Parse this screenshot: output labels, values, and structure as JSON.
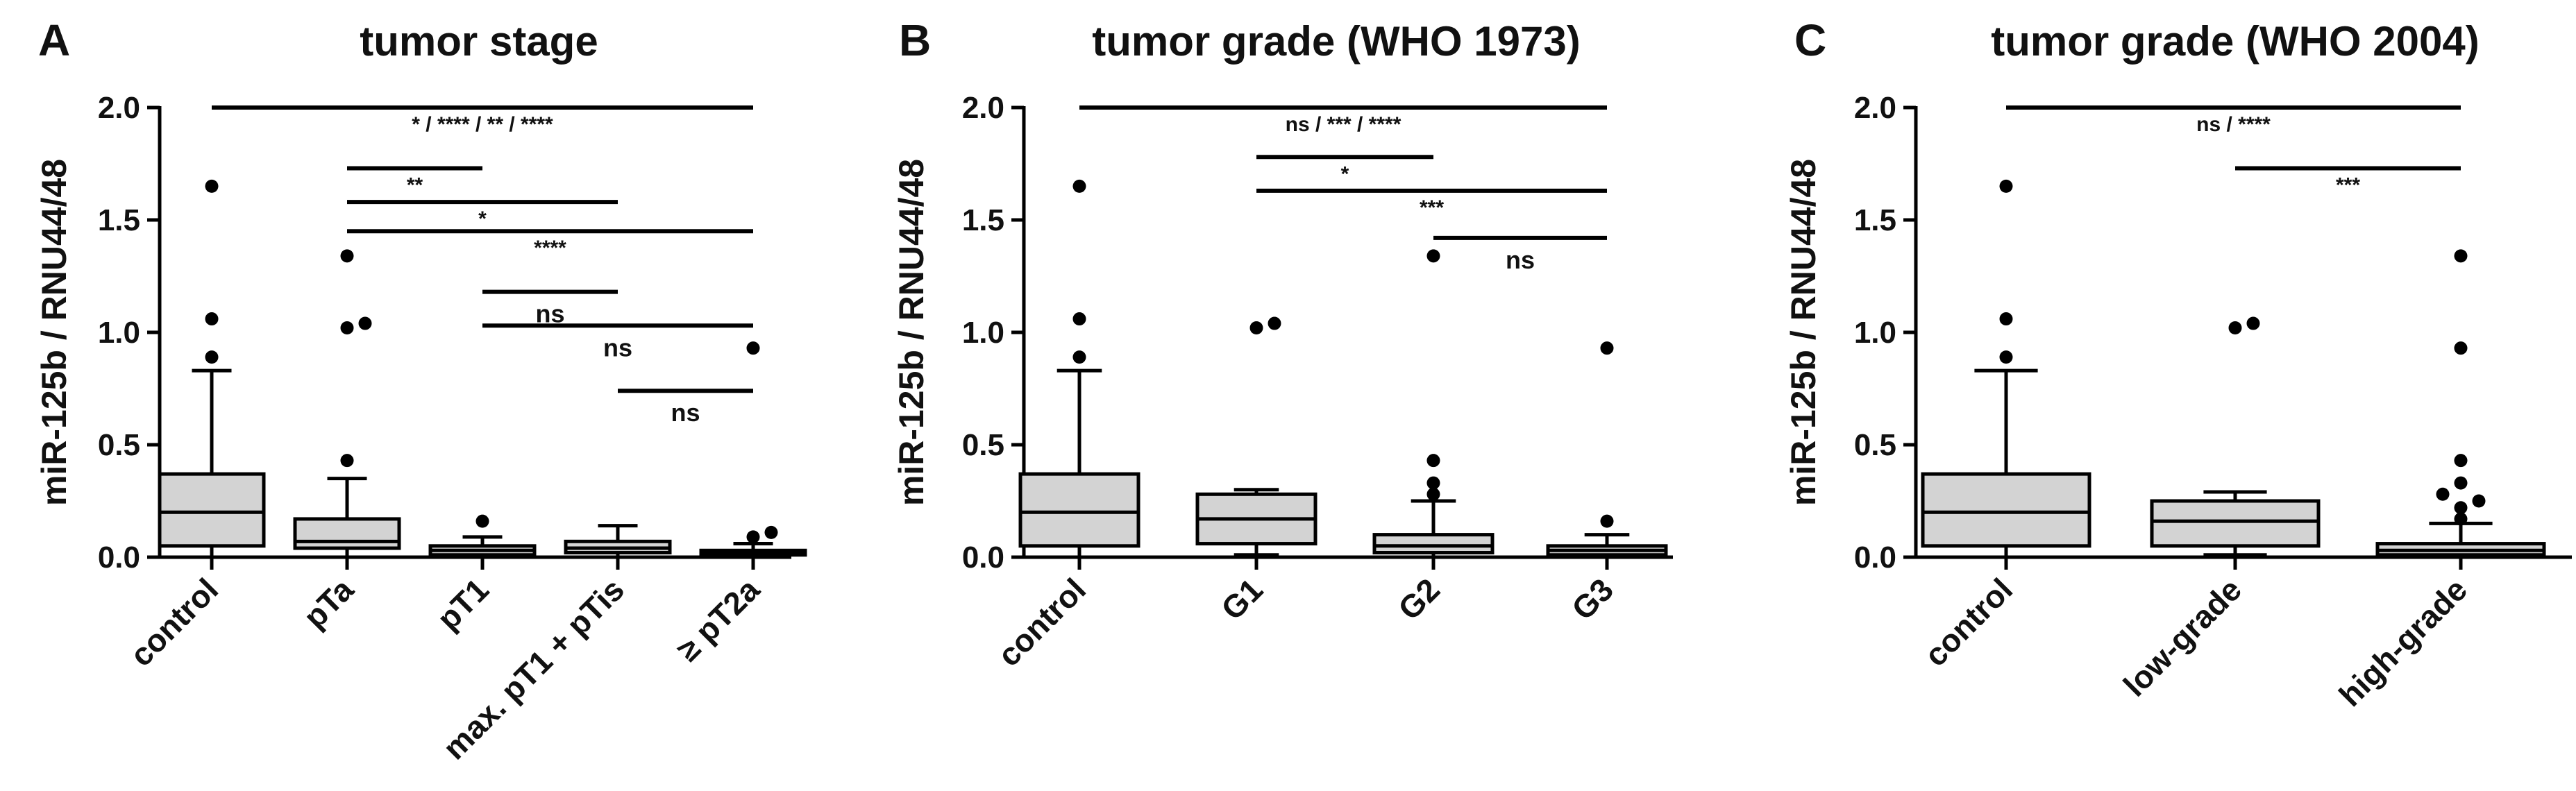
{
  "chart_data": [
    {
      "type": "box",
      "panel": "A",
      "title": "tumor stage",
      "ylabel": "miR-125b / RNU44/48",
      "ylim": [
        0,
        2.0
      ],
      "yticks": [
        "0.0",
        "0.5",
        "1.0",
        "1.5",
        "2.0"
      ],
      "categories": [
        "control",
        "pTa",
        "pT1",
        "max. pT1 + pTis",
        "≥ pT2a"
      ],
      "boxes": [
        {
          "category": "control",
          "whisker_low": 0.0,
          "q1": 0.05,
          "median": 0.2,
          "q3": 0.37,
          "whisker_high": 0.83,
          "outliers": [
            0.89,
            1.06,
            1.65
          ]
        },
        {
          "category": "pTa",
          "whisker_low": 0.0,
          "q1": 0.04,
          "median": 0.07,
          "q3": 0.17,
          "whisker_high": 0.35,
          "outliers": [
            0.43,
            1.02,
            1.04,
            1.34
          ]
        },
        {
          "category": "pT1",
          "whisker_low": 0.0,
          "q1": 0.01,
          "median": 0.03,
          "q3": 0.05,
          "whisker_high": 0.09,
          "outliers": [
            0.16
          ]
        },
        {
          "category": "max. pT1 + pTis",
          "whisker_low": 0.0,
          "q1": 0.02,
          "median": 0.04,
          "q3": 0.07,
          "whisker_high": 0.14,
          "outliers": []
        },
        {
          "category": "≥ pT2a",
          "whisker_low": 0.0,
          "q1": 0.01,
          "median": 0.02,
          "q3": 0.03,
          "whisker_high": 0.06,
          "outliers": [
            0.09,
            0.11,
            0.93
          ]
        }
      ],
      "significance": [
        {
          "from": "control",
          "to": "≥ pT2a",
          "y": 2.0,
          "label": "* / **** / ** / ****"
        },
        {
          "from": "pTa",
          "to": "pT1",
          "y": 1.73,
          "label": "**"
        },
        {
          "from": "pTa",
          "to": "max. pT1 + pTis",
          "y": 1.58,
          "label": "*"
        },
        {
          "from": "pTa",
          "to": "≥ pT2a",
          "y": 1.45,
          "label": "****"
        },
        {
          "from": "pT1",
          "to": "max. pT1 + pTis",
          "y": 1.18,
          "label": "ns"
        },
        {
          "from": "pT1",
          "to": "≥ pT2a",
          "y": 1.03,
          "label": "ns"
        },
        {
          "from": "max. pT1 + pTis",
          "to": "≥ pT2a",
          "y": 0.74,
          "label": "ns"
        }
      ]
    },
    {
      "type": "box",
      "panel": "B",
      "title": "tumor grade (WHO 1973)",
      "ylabel": "miR-125b / RNU44/48",
      "ylim": [
        0,
        2.0
      ],
      "yticks": [
        "0.0",
        "0.5",
        "1.0",
        "1.5",
        "2.0"
      ],
      "categories": [
        "control",
        "G1",
        "G2",
        "G3"
      ],
      "boxes": [
        {
          "category": "control",
          "whisker_low": 0.0,
          "q1": 0.05,
          "median": 0.2,
          "q3": 0.37,
          "whisker_high": 0.83,
          "outliers": [
            0.89,
            1.06,
            1.65
          ]
        },
        {
          "category": "G1",
          "whisker_low": 0.01,
          "q1": 0.06,
          "median": 0.17,
          "q3": 0.28,
          "whisker_high": 0.3,
          "outliers": [
            1.02,
            1.04
          ]
        },
        {
          "category": "G2",
          "whisker_low": 0.0,
          "q1": 0.02,
          "median": 0.05,
          "q3": 0.1,
          "whisker_high": 0.25,
          "outliers": [
            0.28,
            0.33,
            0.43,
            1.34
          ]
        },
        {
          "category": "G3",
          "whisker_low": 0.0,
          "q1": 0.01,
          "median": 0.03,
          "q3": 0.05,
          "whisker_high": 0.1,
          "outliers": [
            0.16,
            0.93
          ]
        }
      ],
      "significance": [
        {
          "from": "control",
          "to": "G3",
          "y": 2.0,
          "label": "ns / *** / ****"
        },
        {
          "from": "G1",
          "to": "G2",
          "y": 1.78,
          "label": "*"
        },
        {
          "from": "G1",
          "to": "G3",
          "y": 1.63,
          "label": "***"
        },
        {
          "from": "G2",
          "to": "G3",
          "y": 1.42,
          "label": "ns"
        }
      ]
    },
    {
      "type": "box",
      "panel": "C",
      "title": "tumor grade (WHO 2004)",
      "ylabel": "miR-125b / RNU44/48",
      "ylim": [
        0,
        2.0
      ],
      "yticks": [
        "0.0",
        "0.5",
        "1.0",
        "1.5",
        "2.0"
      ],
      "categories": [
        "control",
        "low-grade",
        "high-grade"
      ],
      "boxes": [
        {
          "category": "control",
          "whisker_low": 0.0,
          "q1": 0.05,
          "median": 0.2,
          "q3": 0.37,
          "whisker_high": 0.83,
          "outliers": [
            0.89,
            1.06,
            1.65
          ]
        },
        {
          "category": "low-grade",
          "whisker_low": 0.01,
          "q1": 0.05,
          "median": 0.16,
          "q3": 0.25,
          "whisker_high": 0.29,
          "outliers": [
            1.02,
            1.04
          ]
        },
        {
          "category": "high-grade",
          "whisker_low": 0.0,
          "q1": 0.01,
          "median": 0.03,
          "q3": 0.06,
          "whisker_high": 0.15,
          "outliers": [
            0.17,
            0.22,
            0.25,
            0.28,
            0.33,
            0.43,
            0.93,
            1.34
          ]
        }
      ],
      "significance": [
        {
          "from": "control",
          "to": "high-grade",
          "y": 2.0,
          "label": "ns / ****"
        },
        {
          "from": "low-grade",
          "to": "high-grade",
          "y": 1.73,
          "label": "***"
        }
      ]
    }
  ]
}
